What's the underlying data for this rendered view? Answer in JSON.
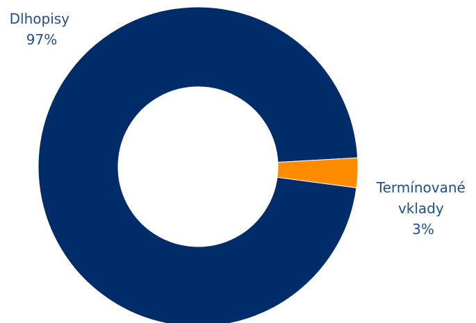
{
  "chart_data": {
    "type": "pie",
    "donut": true,
    "legend": "none",
    "slices": [
      {
        "label": "Dlhopisy",
        "value": 97,
        "display": "97%",
        "color": "#002d69"
      },
      {
        "label": "Termínované vklady",
        "value": 3,
        "display": "3%",
        "color": "#ff8c00"
      }
    ]
  }
}
